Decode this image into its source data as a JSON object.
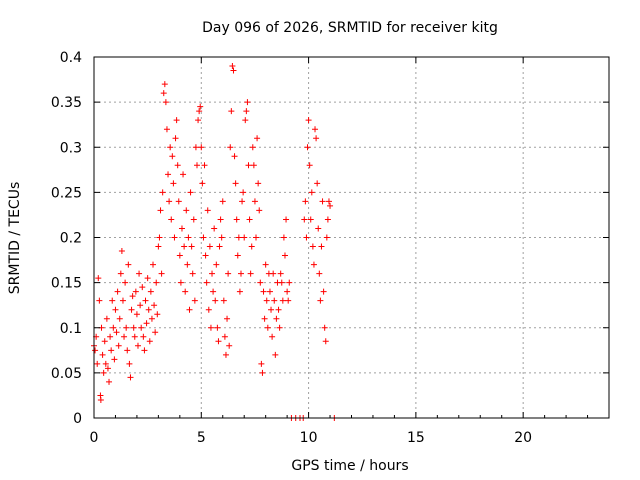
{
  "chart_data": {
    "type": "scatter",
    "title": "Day 096 of 2026, SRMTID for receiver kitg",
    "xlabel": "GPS time / hours",
    "ylabel": "SRMTID / TECUs",
    "xlim": [
      0,
      24
    ],
    "ylim": [
      0,
      0.4
    ],
    "xticks": [
      0,
      5,
      10,
      15,
      20
    ],
    "xtick_labels": [
      "0",
      "5",
      "10",
      "15",
      "20"
    ],
    "yticks": [
      0,
      0.05,
      0.1,
      0.15,
      0.2,
      0.25,
      0.3,
      0.35,
      0.4
    ],
    "ytick_labels": [
      "0",
      "0.05",
      "0.1",
      "0.15",
      "0.2",
      "0.25",
      "0.3",
      "0.35",
      "0.4"
    ],
    "grid": true,
    "marker": "plus",
    "color": "#ff0000",
    "series": [
      {
        "name": "SRMTID",
        "points": [
          [
            0.0,
            0.08
          ],
          [
            0.05,
            0.075
          ],
          [
            0.1,
            0.09
          ],
          [
            0.15,
            0.06
          ],
          [
            0.2,
            0.155
          ],
          [
            0.25,
            0.13
          ],
          [
            0.3,
            0.025
          ],
          [
            0.32,
            0.02
          ],
          [
            0.35,
            0.1
          ],
          [
            0.4,
            0.07
          ],
          [
            0.45,
            0.05
          ],
          [
            0.5,
            0.085
          ],
          [
            0.55,
            0.06
          ],
          [
            0.6,
            0.11
          ],
          [
            0.65,
            0.055
          ],
          [
            0.7,
            0.04
          ],
          [
            0.75,
            0.09
          ],
          [
            0.8,
            0.075
          ],
          [
            0.85,
            0.13
          ],
          [
            0.9,
            0.1
          ],
          [
            0.95,
            0.065
          ],
          [
            1.0,
            0.12
          ],
          [
            1.05,
            0.095
          ],
          [
            1.1,
            0.14
          ],
          [
            1.15,
            0.08
          ],
          [
            1.2,
            0.11
          ],
          [
            1.25,
            0.16
          ],
          [
            1.3,
            0.185
          ],
          [
            1.35,
            0.13
          ],
          [
            1.4,
            0.09
          ],
          [
            1.45,
            0.15
          ],
          [
            1.5,
            0.1
          ],
          [
            1.55,
            0.075
          ],
          [
            1.6,
            0.17
          ],
          [
            1.65,
            0.06
          ],
          [
            1.7,
            0.045
          ],
          [
            1.75,
            0.12
          ],
          [
            1.8,
            0.135
          ],
          [
            1.85,
            0.1
          ],
          [
            1.9,
            0.09
          ],
          [
            1.95,
            0.14
          ],
          [
            2.0,
            0.115
          ],
          [
            2.05,
            0.08
          ],
          [
            2.1,
            0.16
          ],
          [
            2.15,
            0.125
          ],
          [
            2.2,
            0.1
          ],
          [
            2.25,
            0.145
          ],
          [
            2.3,
            0.09
          ],
          [
            2.35,
            0.075
          ],
          [
            2.4,
            0.13
          ],
          [
            2.45,
            0.105
          ],
          [
            2.5,
            0.155
          ],
          [
            2.55,
            0.12
          ],
          [
            2.6,
            0.085
          ],
          [
            2.65,
            0.14
          ],
          [
            2.7,
            0.11
          ],
          [
            2.75,
            0.17
          ],
          [
            2.8,
            0.125
          ],
          [
            2.85,
            0.095
          ],
          [
            2.9,
            0.15
          ],
          [
            2.95,
            0.115
          ],
          [
            3.0,
            0.19
          ],
          [
            3.05,
            0.2
          ],
          [
            3.1,
            0.23
          ],
          [
            3.15,
            0.16
          ],
          [
            3.2,
            0.25
          ],
          [
            3.25,
            0.36
          ],
          [
            3.3,
            0.37
          ],
          [
            3.35,
            0.35
          ],
          [
            3.4,
            0.32
          ],
          [
            3.45,
            0.27
          ],
          [
            3.5,
            0.24
          ],
          [
            3.55,
            0.3
          ],
          [
            3.6,
            0.22
          ],
          [
            3.65,
            0.29
          ],
          [
            3.7,
            0.26
          ],
          [
            3.75,
            0.2
          ],
          [
            3.8,
            0.31
          ],
          [
            3.85,
            0.33
          ],
          [
            3.9,
            0.28
          ],
          [
            3.95,
            0.24
          ],
          [
            4.0,
            0.18
          ],
          [
            4.05,
            0.15
          ],
          [
            4.1,
            0.21
          ],
          [
            4.15,
            0.27
          ],
          [
            4.2,
            0.19
          ],
          [
            4.25,
            0.14
          ],
          [
            4.3,
            0.23
          ],
          [
            4.35,
            0.17
          ],
          [
            4.4,
            0.2
          ],
          [
            4.45,
            0.12
          ],
          [
            4.5,
            0.25
          ],
          [
            4.55,
            0.19
          ],
          [
            4.6,
            0.16
          ],
          [
            4.65,
            0.22
          ],
          [
            4.7,
            0.13
          ],
          [
            4.75,
            0.3
          ],
          [
            4.8,
            0.28
          ],
          [
            4.85,
            0.33
          ],
          [
            4.9,
            0.34
          ],
          [
            4.95,
            0.345
          ],
          [
            5.0,
            0.3
          ],
          [
            5.05,
            0.26
          ],
          [
            5.1,
            0.2
          ],
          [
            5.15,
            0.28
          ],
          [
            5.2,
            0.18
          ],
          [
            5.25,
            0.15
          ],
          [
            5.3,
            0.23
          ],
          [
            5.35,
            0.12
          ],
          [
            5.4,
            0.19
          ],
          [
            5.45,
            0.1
          ],
          [
            5.5,
            0.16
          ],
          [
            5.55,
            0.14
          ],
          [
            5.6,
            0.21
          ],
          [
            5.65,
            0.13
          ],
          [
            5.7,
            0.17
          ],
          [
            5.75,
            0.1
          ],
          [
            5.8,
            0.085
          ],
          [
            5.85,
            0.19
          ],
          [
            5.9,
            0.22
          ],
          [
            5.95,
            0.2
          ],
          [
            6.0,
            0.24
          ],
          [
            6.05,
            0.13
          ],
          [
            6.1,
            0.09
          ],
          [
            6.15,
            0.07
          ],
          [
            6.2,
            0.11
          ],
          [
            6.25,
            0.16
          ],
          [
            6.3,
            0.08
          ],
          [
            6.35,
            0.3
          ],
          [
            6.4,
            0.34
          ],
          [
            6.45,
            0.39
          ],
          [
            6.5,
            0.385
          ],
          [
            6.55,
            0.29
          ],
          [
            6.6,
            0.26
          ],
          [
            6.65,
            0.22
          ],
          [
            6.7,
            0.18
          ],
          [
            6.75,
            0.2
          ],
          [
            6.8,
            0.14
          ],
          [
            6.85,
            0.16
          ],
          [
            6.9,
            0.24
          ],
          [
            6.95,
            0.25
          ],
          [
            7.0,
            0.2
          ],
          [
            7.05,
            0.33
          ],
          [
            7.1,
            0.34
          ],
          [
            7.15,
            0.35
          ],
          [
            7.2,
            0.28
          ],
          [
            7.25,
            0.22
          ],
          [
            7.3,
            0.16
          ],
          [
            7.35,
            0.19
          ],
          [
            7.4,
            0.3
          ],
          [
            7.45,
            0.28
          ],
          [
            7.5,
            0.24
          ],
          [
            7.55,
            0.2
          ],
          [
            7.6,
            0.31
          ],
          [
            7.65,
            0.26
          ],
          [
            7.7,
            0.23
          ],
          [
            7.75,
            0.15
          ],
          [
            7.8,
            0.06
          ],
          [
            7.85,
            0.05
          ],
          [
            7.9,
            0.14
          ],
          [
            7.95,
            0.11
          ],
          [
            8.0,
            0.17
          ],
          [
            8.05,
            0.13
          ],
          [
            8.1,
            0.1
          ],
          [
            8.15,
            0.16
          ],
          [
            8.2,
            0.14
          ],
          [
            8.25,
            0.12
          ],
          [
            8.3,
            0.09
          ],
          [
            8.35,
            0.16
          ],
          [
            8.4,
            0.13
          ],
          [
            8.45,
            0.07
          ],
          [
            8.5,
            0.11
          ],
          [
            8.55,
            0.15
          ],
          [
            8.6,
            0.12
          ],
          [
            8.65,
            0.1
          ],
          [
            8.7,
            0.16
          ],
          [
            8.75,
            0.15
          ],
          [
            8.8,
            0.13
          ],
          [
            8.85,
            0.2
          ],
          [
            8.9,
            0.18
          ],
          [
            8.95,
            0.22
          ],
          [
            9.0,
            0.14
          ],
          [
            9.05,
            0.13
          ],
          [
            9.1,
            0.15
          ],
          [
            9.2,
            0.0
          ],
          [
            9.4,
            0.0
          ],
          [
            9.6,
            0.0
          ],
          [
            9.75,
            0.0
          ],
          [
            9.8,
            0.22
          ],
          [
            9.85,
            0.24
          ],
          [
            9.9,
            0.2
          ],
          [
            9.95,
            0.3
          ],
          [
            10.0,
            0.33
          ],
          [
            10.05,
            0.28
          ],
          [
            10.1,
            0.22
          ],
          [
            10.15,
            0.25
          ],
          [
            10.2,
            0.19
          ],
          [
            10.25,
            0.17
          ],
          [
            10.3,
            0.32
          ],
          [
            10.35,
            0.31
          ],
          [
            10.4,
            0.26
          ],
          [
            10.45,
            0.21
          ],
          [
            10.5,
            0.16
          ],
          [
            10.55,
            0.13
          ],
          [
            10.6,
            0.19
          ],
          [
            10.65,
            0.24
          ],
          [
            10.7,
            0.14
          ],
          [
            10.75,
            0.1
          ],
          [
            10.8,
            0.085
          ],
          [
            10.85,
            0.2
          ],
          [
            10.9,
            0.22
          ],
          [
            10.95,
            0.24
          ],
          [
            11.0,
            0.235
          ],
          [
            11.2,
            0.0
          ]
        ]
      }
    ]
  }
}
